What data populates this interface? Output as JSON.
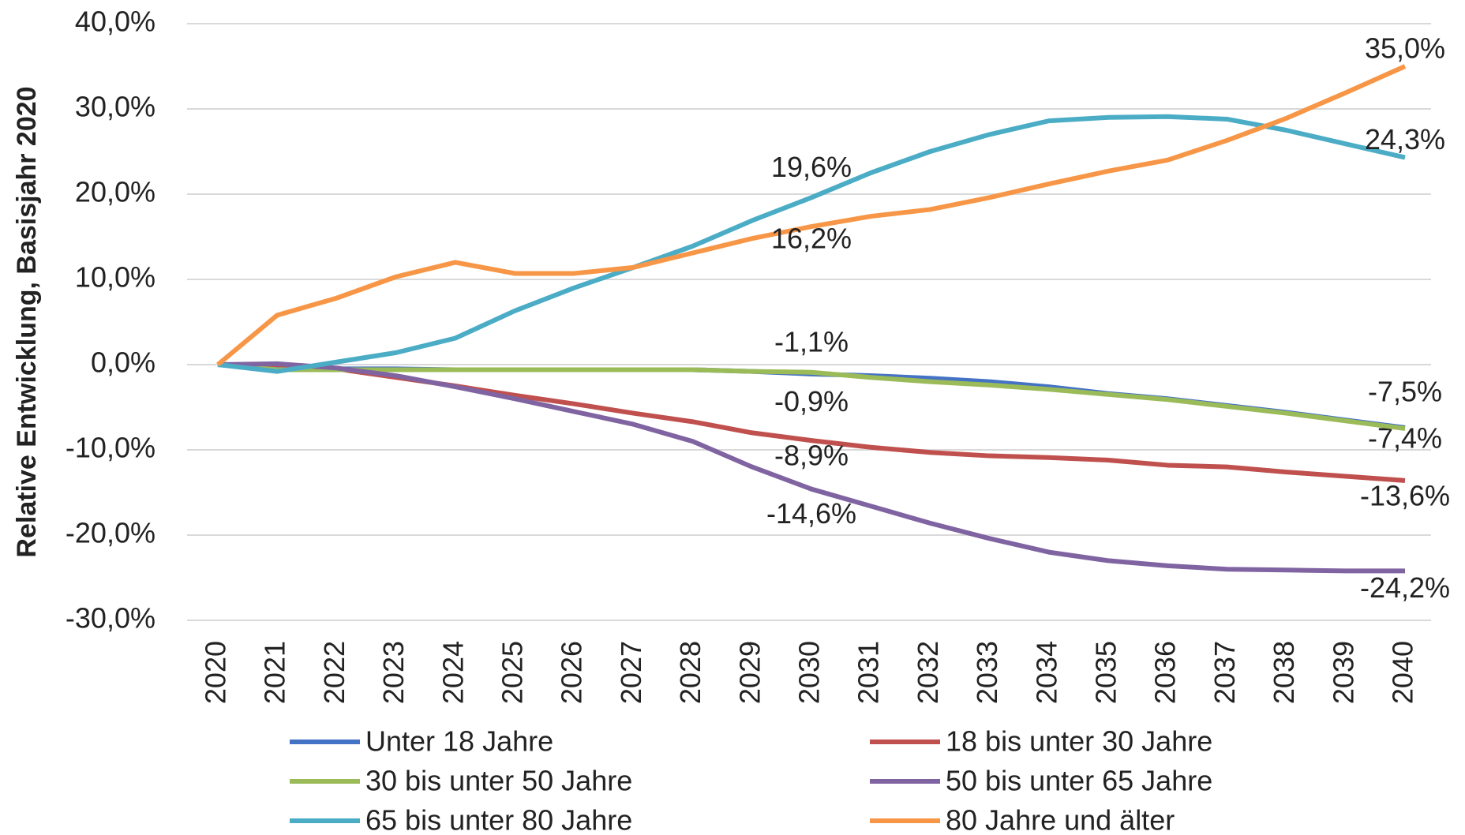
{
  "chart_data": {
    "type": "line",
    "y_label": "Relative Entwicklung, Basisjahr 2020",
    "categories": [
      "2020",
      "2021",
      "2022",
      "2023",
      "2024",
      "2025",
      "2026",
      "2027",
      "2028",
      "2029",
      "2030",
      "2031",
      "2032",
      "2033",
      "2034",
      "2035",
      "2036",
      "2037",
      "2038",
      "2039",
      "2040"
    ],
    "ylim": [
      -30,
      40
    ],
    "yticks": [
      {
        "value": -30,
        "label": "-30,0%"
      },
      {
        "value": -20,
        "label": "-20,0%"
      },
      {
        "value": -10,
        "label": "-10,0%"
      },
      {
        "value": 0,
        "label": "0,0%"
      },
      {
        "value": 10,
        "label": "10,0%"
      },
      {
        "value": 20,
        "label": "20,0%"
      },
      {
        "value": 30,
        "label": "30,0%"
      },
      {
        "value": 40,
        "label": "40,0%"
      }
    ],
    "grid": true,
    "series": [
      {
        "name": "Unter 18 Jahre",
        "color": "#4472c4",
        "values": [
          0,
          -0.5,
          -0.5,
          -0.5,
          -0.6,
          -0.6,
          -0.6,
          -0.6,
          -0.6,
          -0.8,
          -1.1,
          -1.3,
          -1.6,
          -2.0,
          -2.6,
          -3.4,
          -4.0,
          -4.8,
          -5.6,
          -6.5,
          -7.4
        ],
        "value_labels": [
          null,
          null,
          null,
          null,
          null,
          null,
          null,
          null,
          null,
          null,
          "-1,1%",
          null,
          null,
          null,
          null,
          null,
          null,
          null,
          null,
          null,
          "-7,4%"
        ]
      },
      {
        "name": "18 bis unter 30 Jahre",
        "color": "#c0504d",
        "values": [
          0,
          0,
          -0.5,
          -1.5,
          -2.5,
          -3.6,
          -4.6,
          -5.7,
          -6.7,
          -8.0,
          -8.9,
          -9.7,
          -10.3,
          -10.7,
          -10.9,
          -11.2,
          -11.8,
          -12.0,
          -12.6,
          -13.1,
          -13.6
        ],
        "value_labels": [
          null,
          null,
          null,
          null,
          null,
          null,
          null,
          null,
          null,
          null,
          "-8,9%",
          null,
          null,
          null,
          null,
          null,
          null,
          null,
          null,
          null,
          "-13,6%"
        ]
      },
      {
        "name": "30 bis unter 50 Jahre",
        "color": "#9bbb59",
        "values": [
          0,
          -0.6,
          -0.6,
          -0.6,
          -0.6,
          -0.6,
          -0.6,
          -0.6,
          -0.6,
          -0.8,
          -0.9,
          -1.5,
          -2.0,
          -2.4,
          -2.9,
          -3.5,
          -4.1,
          -4.9,
          -5.7,
          -6.6,
          -7.5
        ],
        "value_labels": [
          null,
          null,
          null,
          null,
          null,
          null,
          null,
          null,
          null,
          null,
          "-0,9%",
          null,
          null,
          null,
          null,
          null,
          null,
          null,
          null,
          null,
          "-7,5%"
        ]
      },
      {
        "name": "50 bis unter 65 Jahre",
        "color": "#8064a2",
        "values": [
          0,
          0.1,
          -0.4,
          -1.3,
          -2.6,
          -4.0,
          -5.5,
          -7.0,
          -9.0,
          -12.0,
          -14.6,
          -16.6,
          -18.6,
          -20.4,
          -22.0,
          -23.0,
          -23.6,
          -24.0,
          -24.1,
          -24.2,
          -24.2
        ],
        "value_labels": [
          null,
          null,
          null,
          null,
          null,
          null,
          null,
          null,
          null,
          null,
          "-14,6%",
          null,
          null,
          null,
          null,
          null,
          null,
          null,
          null,
          null,
          "-24,2%"
        ]
      },
      {
        "name": "65 bis unter 80 Jahre",
        "color": "#4bacc6",
        "values": [
          0,
          -0.8,
          0.3,
          1.4,
          3.1,
          6.3,
          9.0,
          11.4,
          13.9,
          16.9,
          19.6,
          22.5,
          25.0,
          27.0,
          28.6,
          29.0,
          29.1,
          28.8,
          27.5,
          25.9,
          24.3
        ],
        "value_labels": [
          null,
          null,
          null,
          null,
          null,
          null,
          null,
          null,
          null,
          null,
          "19,6%",
          null,
          null,
          null,
          null,
          null,
          null,
          null,
          null,
          null,
          "24,3%"
        ]
      },
      {
        "name": "80 Jahre und älter",
        "color": "#f79646",
        "values": [
          0,
          5.8,
          7.8,
          10.3,
          12.0,
          10.7,
          10.7,
          11.4,
          13.1,
          14.8,
          16.2,
          17.4,
          18.2,
          19.6,
          21.2,
          22.7,
          24.0,
          26.3,
          28.9,
          31.9,
          35.0
        ],
        "value_labels": [
          null,
          null,
          null,
          null,
          null,
          null,
          null,
          null,
          null,
          null,
          "16,2%",
          null,
          null,
          null,
          null,
          null,
          null,
          null,
          null,
          null,
          "35,0%"
        ]
      }
    ]
  }
}
